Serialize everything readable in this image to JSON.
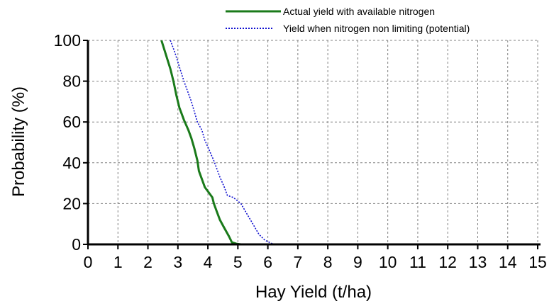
{
  "chart_data": {
    "type": "line",
    "xlabel": "Hay Yield (t/ha)",
    "ylabel": "Probability (%)",
    "xlim": [
      0,
      15
    ],
    "ylim": [
      0,
      100
    ],
    "xticks": [
      "0",
      "1",
      "2",
      "3",
      "4",
      "5",
      "6",
      "7",
      "8",
      "9",
      "10",
      "11",
      "12",
      "13",
      "14",
      "15"
    ],
    "yticks": [
      "0",
      "20",
      "40",
      "60",
      "80",
      "100"
    ],
    "grid": true,
    "legend_position": "top-right",
    "series": [
      {
        "name": "Actual yield with available nitrogen",
        "color": "#1a7a1a",
        "style": "solid",
        "x": [
          2.45,
          2.6,
          2.75,
          2.85,
          2.95,
          3.05,
          3.2,
          3.35,
          3.45,
          3.55,
          3.65,
          3.7,
          3.8,
          3.9,
          4.0,
          4.15,
          4.2,
          4.3,
          4.4,
          4.55,
          4.7,
          4.8,
          4.95,
          5.1
        ],
        "y": [
          100,
          93,
          86,
          80,
          73,
          67,
          61,
          56,
          52,
          47,
          41,
          36,
          32,
          28,
          26,
          23,
          20,
          16,
          12,
          8,
          4,
          1,
          0.3,
          0
        ]
      },
      {
        "name": "Yield when nitrogen non limiting (potential)",
        "color": "#1010d0",
        "style": "dotted",
        "x": [
          2.75,
          2.9,
          3.05,
          3.2,
          3.35,
          3.45,
          3.55,
          3.65,
          3.8,
          3.9,
          4.05,
          4.2,
          4.3,
          4.4,
          4.55,
          4.65,
          4.85,
          5.1,
          5.3,
          5.5,
          5.7,
          5.9,
          6.2
        ],
        "y": [
          100,
          94,
          87,
          80,
          74,
          70,
          65,
          60,
          56,
          51,
          46,
          41,
          37,
          33,
          28,
          24,
          23,
          20,
          15,
          10,
          5,
          2,
          0
        ]
      }
    ]
  }
}
